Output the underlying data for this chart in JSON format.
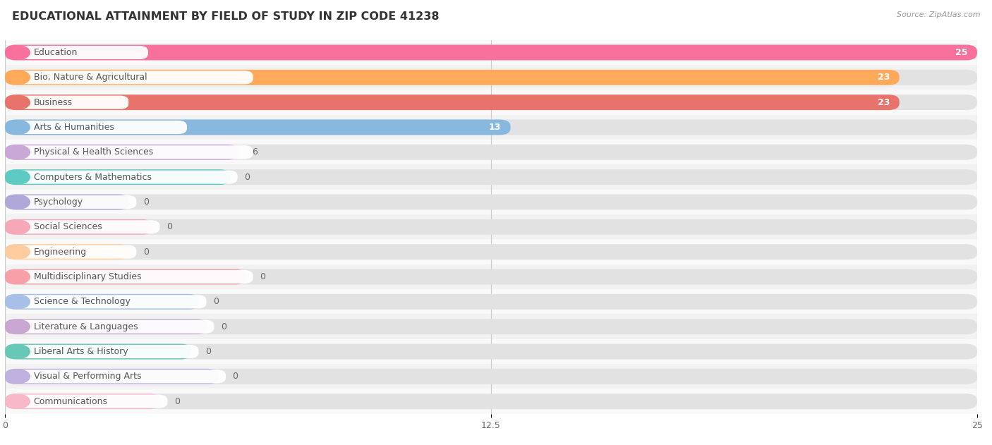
{
  "title": "EDUCATIONAL ATTAINMENT BY FIELD OF STUDY IN ZIP CODE 41238",
  "source": "Source: ZipAtlas.com",
  "categories": [
    "Education",
    "Bio, Nature & Agricultural",
    "Business",
    "Arts & Humanities",
    "Physical & Health Sciences",
    "Computers & Mathematics",
    "Psychology",
    "Social Sciences",
    "Engineering",
    "Multidisciplinary Studies",
    "Science & Technology",
    "Literature & Languages",
    "Liberal Arts & History",
    "Visual & Performing Arts",
    "Communications"
  ],
  "values": [
    25,
    23,
    23,
    13,
    6,
    0,
    0,
    0,
    0,
    0,
    0,
    0,
    0,
    0,
    0
  ],
  "bar_colors": [
    "#F8719D",
    "#FFAA5A",
    "#E8736A",
    "#89B8DF",
    "#C9A8D8",
    "#5ECAC4",
    "#B0A8D8",
    "#F7A8B8",
    "#FFCCA0",
    "#F7A0A8",
    "#A8C0E8",
    "#C8A8D0",
    "#68C8B8",
    "#C0B0E0",
    "#F9B8C8"
  ],
  "xlim_max": 25,
  "xticks": [
    0,
    12.5,
    25
  ],
  "row_colors": [
    "#f9f9f9",
    "#f2f2f2"
  ],
  "bg_bar_color": "#e2e2e2",
  "pill_color": "#ffffff",
  "label_text_color": "#555555",
  "title_fontsize": 11.5,
  "label_fontsize": 9,
  "value_fontsize": 9
}
